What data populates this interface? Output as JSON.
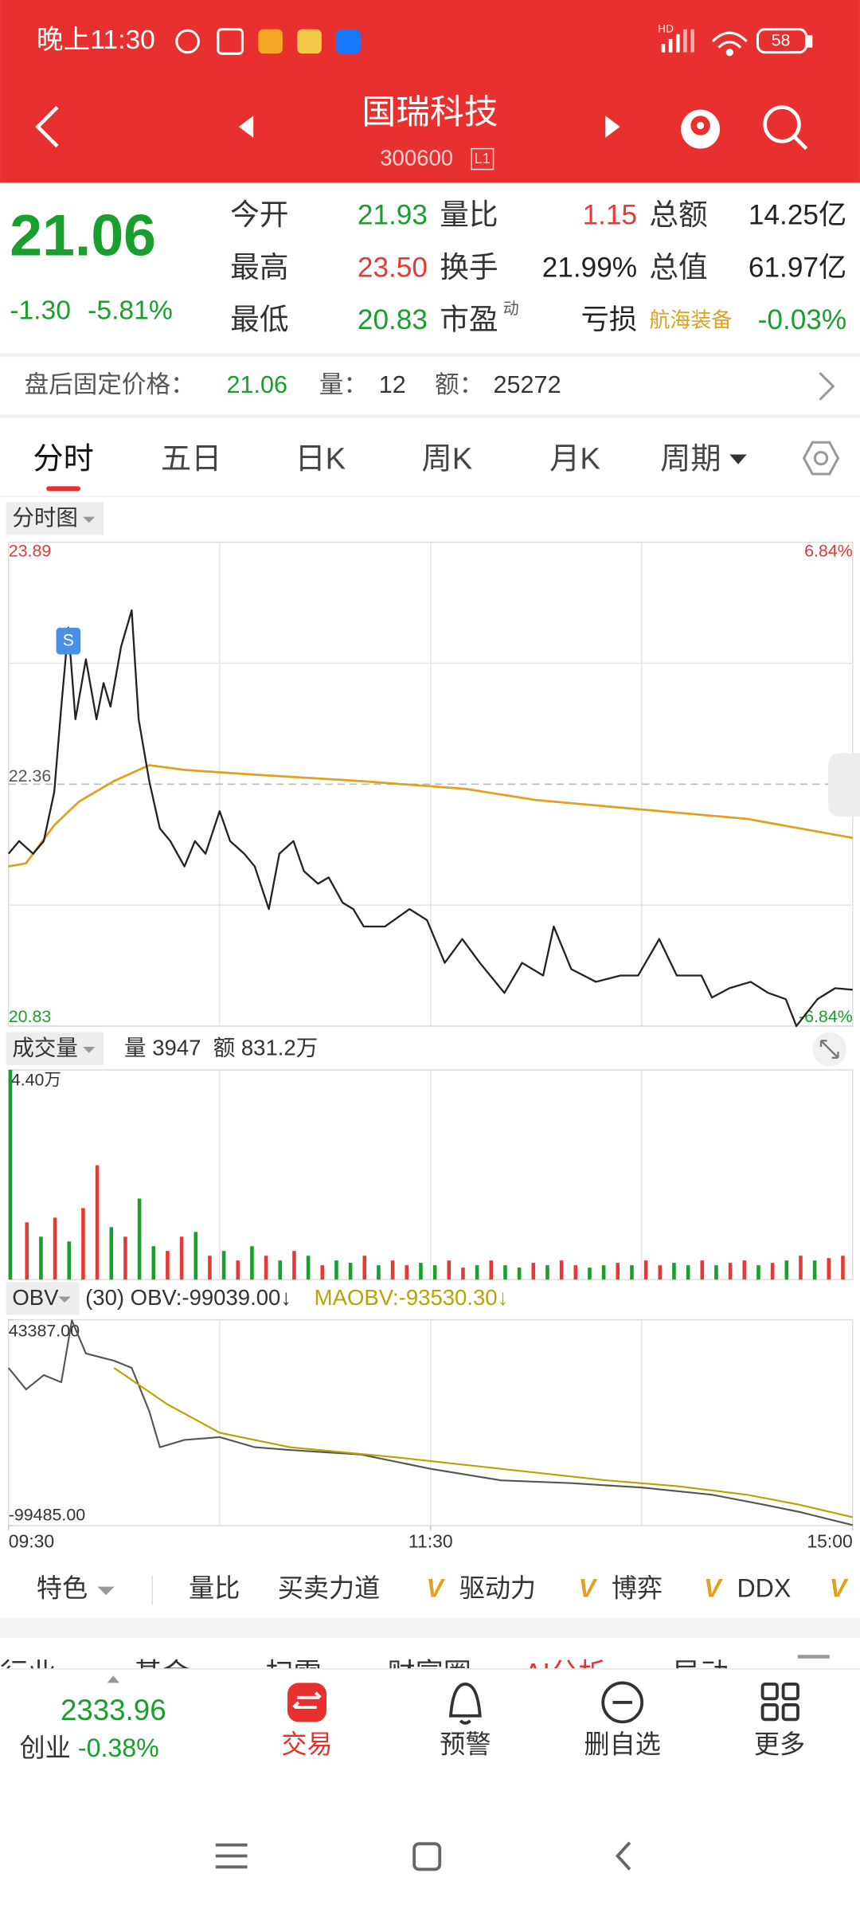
{
  "status_bar": {
    "time": "晚上11:30",
    "network": "HD",
    "battery": "58"
  },
  "header": {
    "title": "国瑞科技",
    "code": "300600",
    "badge": "L1"
  },
  "quote": {
    "price": "21.06",
    "change": "-1.30",
    "change_pct": "-5.81%",
    "color": "#1a9e2e",
    "fields": [
      [
        {
          "label": "今开",
          "value": "21.93",
          "color": "#1a9e2e"
        },
        {
          "label": "量比",
          "value": "1.15",
          "color": "#e53935"
        },
        {
          "label": "总额",
          "value": "14.25亿",
          "color": "#222"
        }
      ],
      [
        {
          "label": "最高",
          "value": "23.50",
          "color": "#e53935"
        },
        {
          "label": "换手",
          "value": "21.99%",
          "color": "#222"
        },
        {
          "label": "总值",
          "value": "61.97亿",
          "color": "#222"
        }
      ],
      [
        {
          "label": "最低",
          "value": "20.83",
          "color": "#1a9e2e"
        },
        {
          "label": "市盈",
          "sup": "动",
          "value": "亏损",
          "color": "#222"
        },
        {
          "label": "航海装备",
          "label_color": "#e0a020",
          "value": "-0.03%",
          "color": "#1a9e2e"
        }
      ]
    ]
  },
  "after_hours": {
    "label": "盘后固定价格：",
    "price": "21.06",
    "volume_label": "量：",
    "volume": "12",
    "amount_label": "额：",
    "amount": "25272"
  },
  "tabs": {
    "items": [
      "分时",
      "五日",
      "日K",
      "周K",
      "月K",
      "周期"
    ],
    "active": 0
  },
  "price_chart": {
    "type": "line",
    "label": "分时图",
    "xlim": [
      0,
      240
    ],
    "ylim": [
      20.83,
      23.89
    ],
    "yticks": [
      20.83,
      22.36,
      23.89
    ],
    "y2lim": [
      -6.84,
      6.84
    ],
    "y2ticks": [
      {
        "value": -6.84,
        "label": "-6.84%"
      },
      {
        "value": 6.84,
        "label": "6.84%"
      }
    ],
    "marker": "S",
    "series": [
      {
        "color": "#222222",
        "x": [
          0,
          3,
          7,
          10,
          13,
          15,
          17,
          19,
          22,
          25,
          27,
          29,
          32,
          35,
          37,
          40,
          43,
          46,
          50,
          53,
          56,
          60,
          63,
          67,
          70,
          74,
          77,
          81,
          84,
          88,
          91,
          95,
          98,
          101,
          107,
          114,
          119,
          124,
          129,
          134,
          141,
          146,
          152,
          155,
          160,
          167,
          174,
          179,
          185,
          190,
          197,
          200,
          205,
          211,
          216,
          221,
          224,
          230,
          235,
          240
        ],
        "values": [
          21.92,
          22.0,
          21.92,
          22.0,
          22.31,
          22.85,
          23.35,
          22.77,
          23.15,
          22.77,
          23.0,
          22.85,
          23.23,
          23.46,
          22.77,
          22.38,
          22.08,
          22.0,
          21.84,
          22.0,
          21.92,
          22.19,
          22.0,
          21.92,
          21.84,
          21.57,
          21.92,
          22.0,
          21.81,
          21.73,
          21.77,
          21.61,
          21.57,
          21.46,
          21.46,
          21.57,
          21.5,
          21.23,
          21.38,
          21.23,
          21.04,
          21.23,
          21.15,
          21.46,
          21.19,
          21.11,
          21.15,
          21.15,
          21.38,
          21.15,
          21.15,
          21.01,
          21.07,
          21.11,
          21.04,
          21.0,
          20.83,
          21.0,
          21.07,
          21.06
        ]
      },
      {
        "color": "#e0a020",
        "x": [
          0,
          5,
          13,
          20,
          30,
          40,
          50,
          70,
          100,
          130,
          150,
          180,
          210,
          240
        ],
        "values": [
          21.84,
          21.86,
          22.1,
          22.25,
          22.38,
          22.48,
          22.45,
          22.42,
          22.38,
          22.33,
          22.26,
          22.2,
          22.14,
          22.02
        ]
      }
    ]
  },
  "volume_chart": {
    "type": "bar",
    "label": "成交量",
    "legend": [
      "量 3947",
      "额 831.2万"
    ],
    "xlim": [
      0,
      240
    ],
    "ylim": [
      0,
      4.4
    ],
    "yticks": [
      {
        "value": 4.4,
        "label": "4.40万"
      }
    ],
    "x": [
      0,
      4,
      8,
      12,
      16,
      20,
      24,
      28,
      32,
      36,
      40,
      44,
      48,
      52,
      56,
      60,
      64,
      68,
      72,
      76,
      80,
      84,
      88,
      92,
      96,
      100,
      104,
      108,
      112,
      116,
      120,
      124,
      128,
      132,
      136,
      140,
      144,
      148,
      152,
      156,
      160,
      164,
      168,
      172,
      176,
      180,
      184,
      188,
      192,
      196,
      200,
      204,
      208,
      212,
      216,
      220,
      224,
      228,
      232,
      236
    ],
    "values": [
      4.4,
      1.2,
      0.9,
      1.3,
      0.8,
      1.5,
      2.4,
      1.1,
      0.9,
      1.7,
      0.7,
      0.6,
      0.9,
      1.0,
      0.5,
      0.6,
      0.4,
      0.7,
      0.5,
      0.4,
      0.6,
      0.5,
      0.3,
      0.4,
      0.35,
      0.5,
      0.3,
      0.4,
      0.3,
      0.35,
      0.3,
      0.4,
      0.25,
      0.3,
      0.4,
      0.3,
      0.25,
      0.35,
      0.3,
      0.4,
      0.3,
      0.25,
      0.3,
      0.35,
      0.3,
      0.4,
      0.3,
      0.35,
      0.3,
      0.4,
      0.3,
      0.35,
      0.4,
      0.3,
      0.35,
      0.4,
      0.5,
      0.4,
      0.45,
      0.5
    ],
    "colors": [
      "#1a9e2e",
      "#e53935",
      "#1a9e2e",
      "#e53935",
      "#1a9e2e",
      "#e53935",
      "#e53935",
      "#1a9e2e",
      "#e53935",
      "#1a9e2e",
      "#1a9e2e",
      "#e53935",
      "#e53935",
      "#1a9e2e",
      "#e53935",
      "#1a9e2e",
      "#e53935",
      "#1a9e2e",
      "#e53935",
      "#1a9e2e",
      "#e53935",
      "#1a9e2e",
      "#e53935",
      "#1a9e2e",
      "#1a9e2e",
      "#e53935",
      "#1a9e2e",
      "#e53935",
      "#e53935",
      "#1a9e2e",
      "#1a9e2e",
      "#e53935",
      "#e53935",
      "#1a9e2e",
      "#e53935",
      "#1a9e2e",
      "#1a9e2e",
      "#e53935",
      "#1a9e2e",
      "#e53935",
      "#e53935",
      "#1a9e2e",
      "#1a9e2e",
      "#e53935",
      "#1a9e2e",
      "#e53935",
      "#e53935",
      "#1a9e2e",
      "#1a9e2e",
      "#e53935",
      "#1a9e2e",
      "#e53935",
      "#e53935",
      "#1a9e2e",
      "#e53935",
      "#1a9e2e",
      "#e53935",
      "#1a9e2e",
      "#e53935",
      "#e53935"
    ]
  },
  "obv_chart": {
    "type": "line",
    "label": "OBV",
    "legend": [
      {
        "text": "(30) OBV:-99039.00↓",
        "color": "#333333"
      },
      {
        "text": "MAOBV:-93530.30↓",
        "color": "#b8a400"
      }
    ],
    "xlim": [
      0,
      240
    ],
    "ylim": [
      -99485,
      43387
    ],
    "yticks": [
      {
        "value": -99485,
        "label": "-99485.00"
      },
      {
        "value": 43387,
        "label": "43387.00"
      }
    ],
    "xticks": [
      {
        "value": 0,
        "label": "09:30"
      },
      {
        "value": 120,
        "label": "11:30"
      },
      {
        "value": 240,
        "label": "15:00"
      }
    ],
    "series": [
      {
        "color": "#555555",
        "x": [
          0,
          5,
          10,
          15,
          18,
          22,
          30,
          35,
          40,
          43,
          50,
          60,
          70,
          80,
          100,
          120,
          140,
          160,
          180,
          200,
          215,
          225,
          240
        ],
        "values": [
          10000,
          -5000,
          5000,
          0,
          43000,
          20000,
          15000,
          10000,
          -20000,
          -45000,
          -40000,
          -38000,
          -45000,
          -47000,
          -50000,
          -60000,
          -68000,
          -70000,
          -73000,
          -78000,
          -85000,
          -90000,
          -99039
        ]
      },
      {
        "color": "#b8a400",
        "x": [
          30,
          45,
          60,
          80,
          110,
          140,
          170,
          190,
          210,
          225,
          240
        ],
        "values": [
          10000,
          -15000,
          -35000,
          -45000,
          -52000,
          -60000,
          -68000,
          -72000,
          -78000,
          -85000,
          -93530
        ]
      }
    ]
  },
  "indicator_bar": {
    "items": [
      {
        "text": "特色"
      },
      {
        "text": "量比"
      },
      {
        "text": "买卖力道"
      },
      {
        "text": "驱动力",
        "badge": "V"
      },
      {
        "text": "博弈",
        "badge": "V"
      },
      {
        "text": "DDX",
        "badge": "V"
      },
      {
        "badge": "V"
      }
    ]
  },
  "sub_tabs": {
    "items": [
      "行业",
      "基金",
      "扫雷",
      "财富圈",
      "AI分析",
      "异动"
    ],
    "active": 4
  },
  "bottom_nav": {
    "index_value": "2333.96",
    "index_name": "创业",
    "index_change": "-0.38%",
    "items": [
      "交易",
      "预警",
      "删自选",
      "更多"
    ],
    "active": 0
  }
}
